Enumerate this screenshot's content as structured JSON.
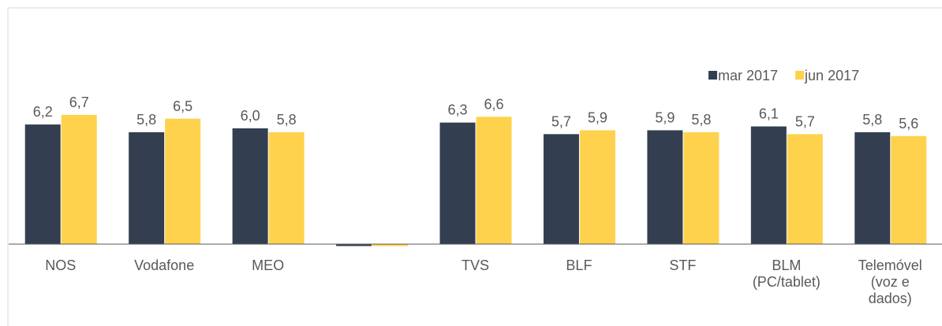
{
  "chart_data": {
    "type": "bar",
    "categories": [
      "NOS",
      "Vodafone",
      "MEO",
      null,
      "TVS",
      "BLF",
      "STF",
      "BLM\n(PC/tablet)",
      "Telemóvel\n(voz e\ndados)"
    ],
    "series": [
      {
        "name": "mar 2017",
        "color": "#333f50",
        "values": [
          6.2,
          5.8,
          6.0,
          -0.1,
          6.3,
          5.7,
          5.9,
          6.1,
          5.8
        ],
        "value_labels": [
          "6,2",
          "5,8",
          "6,0",
          null,
          "6,3",
          "5,7",
          "5,9",
          "6,1",
          "5,8"
        ]
      },
      {
        "name": "jun 2017",
        "color": "#ffd24d",
        "values": [
          6.7,
          6.5,
          5.8,
          -0.1,
          6.6,
          5.9,
          5.8,
          5.7,
          5.6
        ],
        "value_labels": [
          "6,7",
          "6,5",
          "5,8",
          null,
          "6,6",
          "5,9",
          "5,8",
          "5,7",
          "5,6"
        ]
      }
    ],
    "ylim": [
      0,
      10
    ],
    "legend": "top-right"
  }
}
